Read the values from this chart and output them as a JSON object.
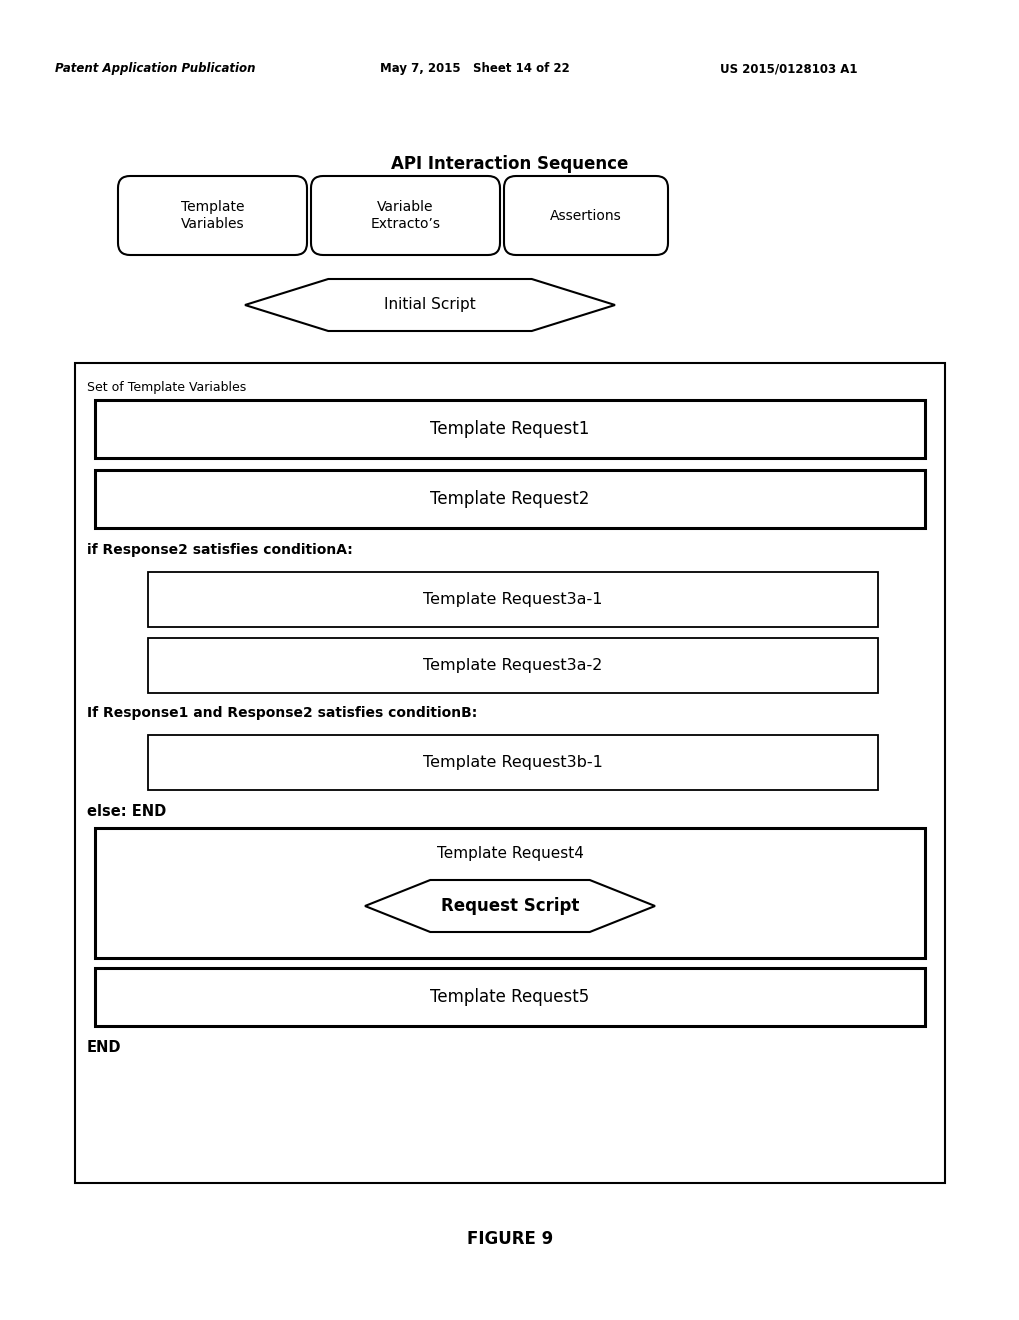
{
  "header_left": "Patent Application Publication",
  "header_mid": "May 7, 2015   Sheet 14 of 22",
  "header_right": "US 2015/0128103 A1",
  "title": "API Interaction Sequence",
  "tab1": "Template\nVariables",
  "tab2": "Variable\nExtracto’s",
  "tab3": "Assertions",
  "diamond1_label": "Initial Script",
  "outer_box_label": "Set of Template Variables",
  "req1": "Template Request1",
  "req2": "Template Request2",
  "cond_a": "if Response2 satisfies conditionA:",
  "req3a1": "Template Request3a-1",
  "req3a2": "Template Request3a-2",
  "cond_b": "If Response1 and Response2 satisfies conditionB:",
  "req3b1": "Template Request3b-1",
  "else_end": "else: END",
  "req4_label": "Template Request4",
  "diamond2_label": "Request Script",
  "req5": "Template Request5",
  "end_label": "END",
  "figure_caption": "FIGURE 9",
  "bg_color": "#ffffff",
  "text_color": "#000000",
  "lw_heavy": 2.2,
  "lw_light": 1.3
}
